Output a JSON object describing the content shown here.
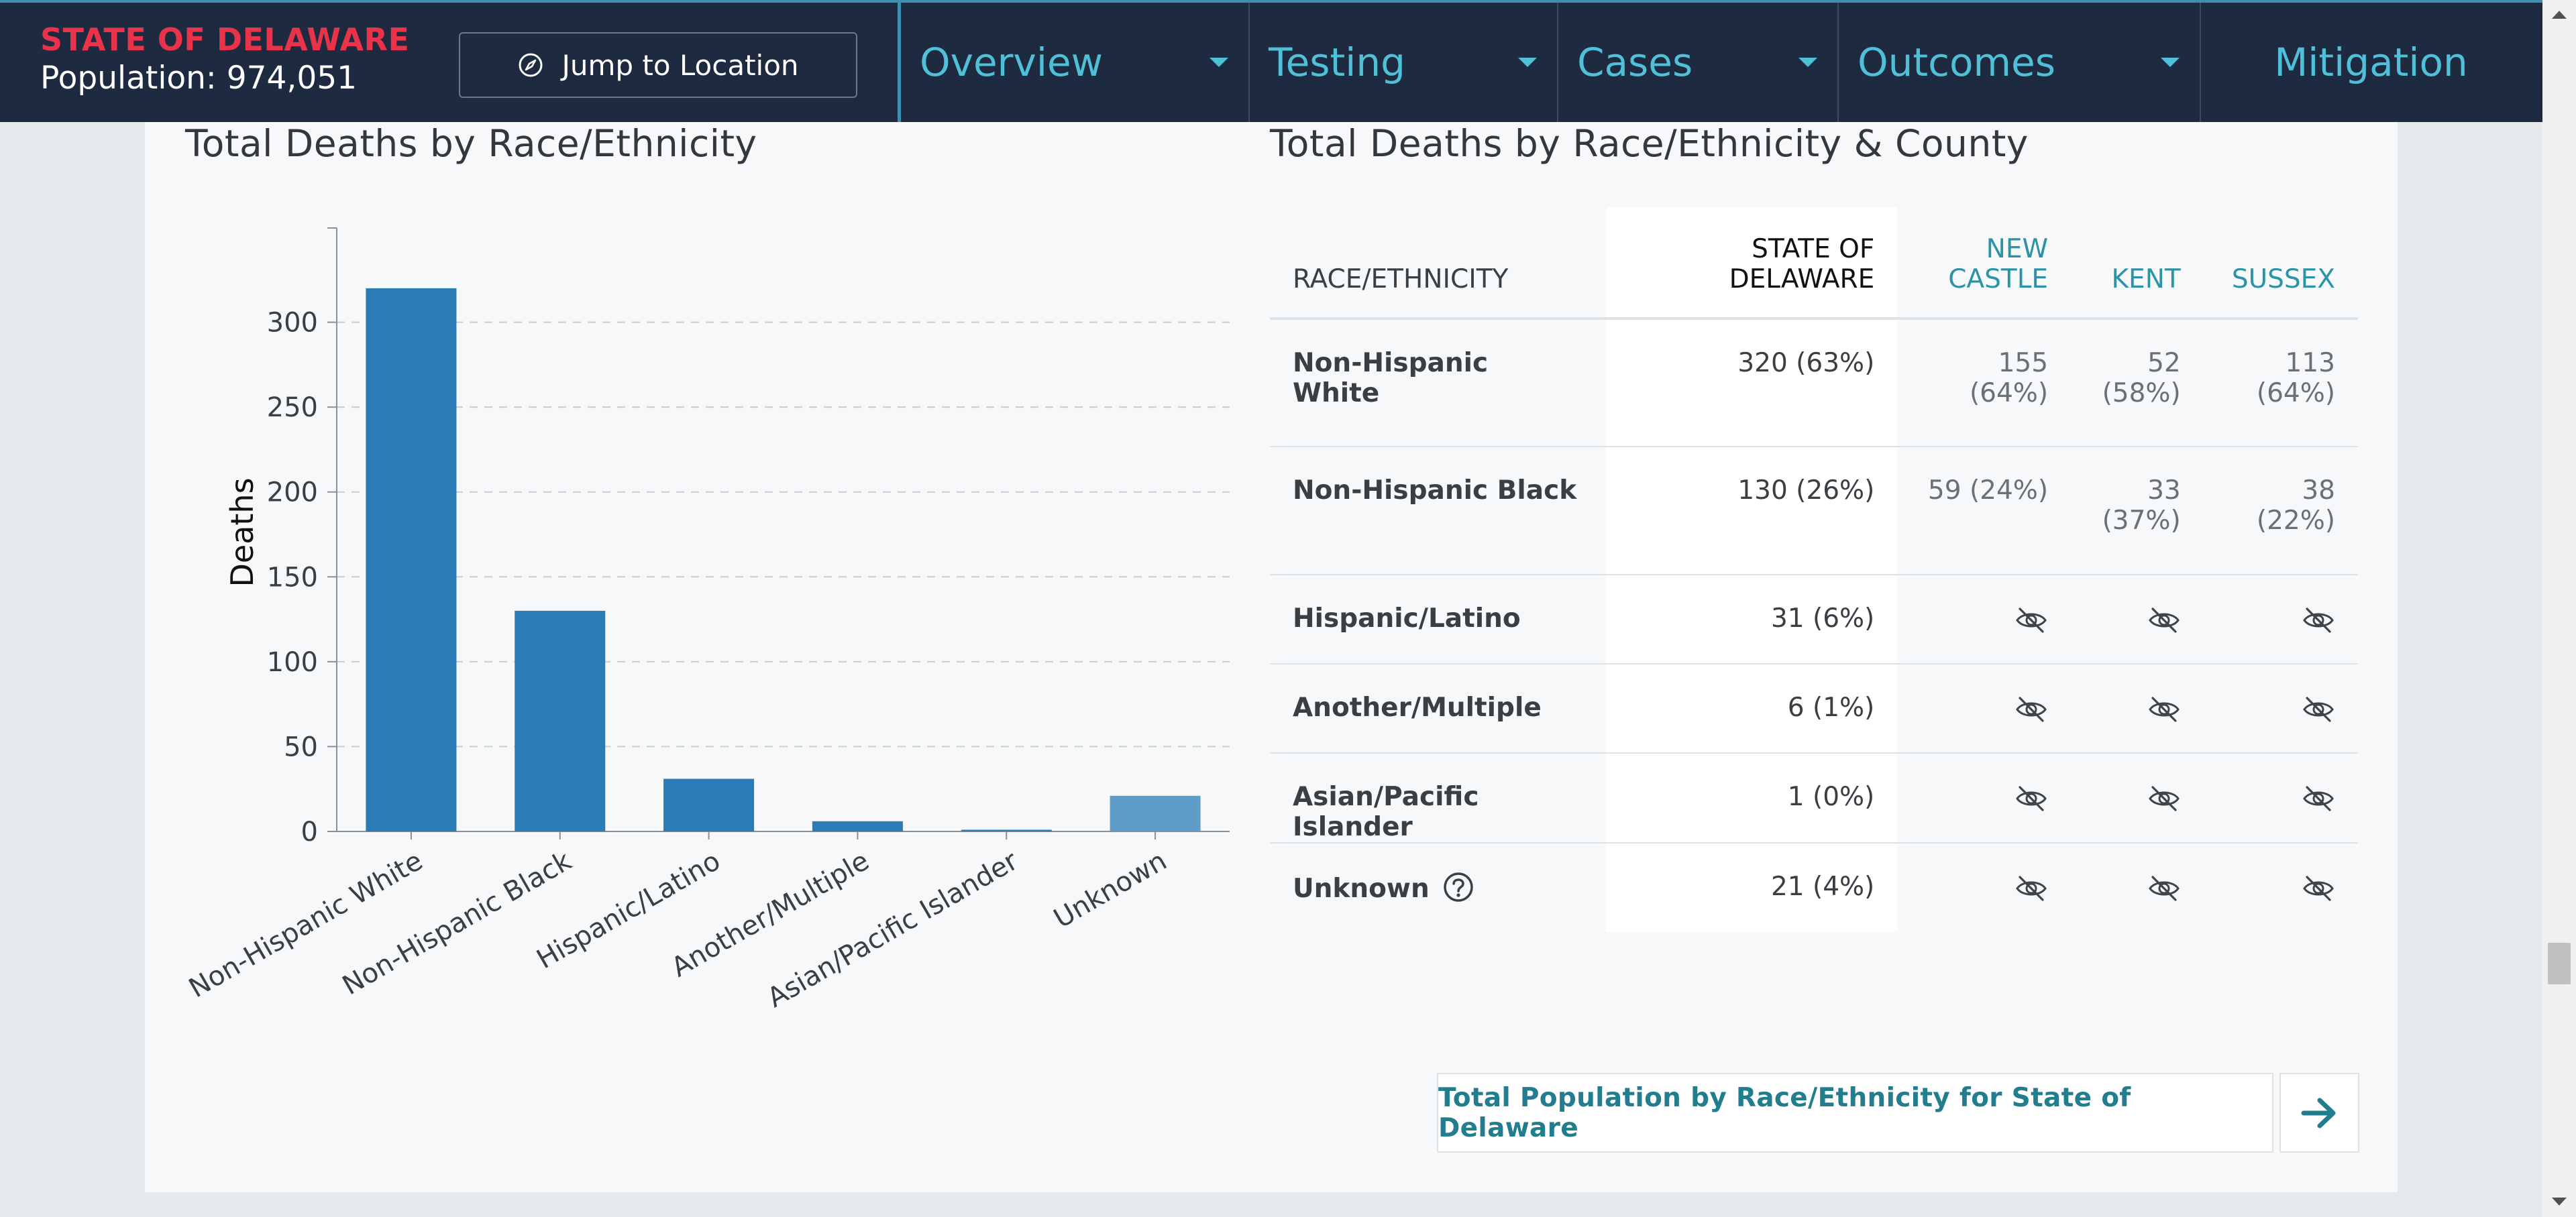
{
  "header": {
    "state_name": "STATE OF DELAWARE",
    "population": "Population: 974,051",
    "jump_label": "Jump to Location",
    "nav": [
      {
        "label": "Overview",
        "dropdown": true
      },
      {
        "label": "Testing",
        "dropdown": true
      },
      {
        "label": "Cases",
        "dropdown": true
      },
      {
        "label": "Outcomes",
        "dropdown": true
      },
      {
        "label": "Mitigation",
        "dropdown": false
      }
    ]
  },
  "chart_section": {
    "title": "Total Deaths by Race/Ethnicity"
  },
  "table_section": {
    "title": "Total Deaths by Race/Ethnicity & County"
  },
  "chart_data": {
    "type": "bar",
    "title": "Total Deaths by Race/Ethnicity",
    "xlabel": "",
    "ylabel": "Deaths",
    "categories": [
      "Non-Hispanic White",
      "Non-Hispanic Black",
      "Hispanic/Latino",
      "Another/Multiple",
      "Asian/Pacific Islander",
      "Unknown"
    ],
    "values": [
      320,
      130,
      31,
      6,
      1,
      21
    ],
    "ylim": [
      0,
      350
    ],
    "yticks": [
      0,
      50,
      100,
      150,
      200,
      250,
      300
    ],
    "grid": true,
    "colors": [
      "#2b7bb5",
      "#2b7bb5",
      "#2b7bb5",
      "#2b7bb5",
      "#2b7bb5",
      "#5d9dc8"
    ]
  },
  "table": {
    "headers": {
      "race": "RACE/ETHNICITY",
      "state": [
        "STATE OF",
        "DELAWARE"
      ],
      "new_castle": [
        "NEW",
        "CASTLE"
      ],
      "kent": "KENT",
      "sussex": "SUSSEX"
    },
    "rows": [
      {
        "race": "Non-Hispanic White",
        "state": "320 (63%)",
        "new_castle": "155 (64%)",
        "kent": [
          "52",
          "(58%)"
        ],
        "sussex": [
          "113",
          "(64%)"
        ],
        "hidden": false
      },
      {
        "race": "Non-Hispanic Black",
        "state": "130 (26%)",
        "new_castle": "59 (24%)",
        "kent": [
          "33",
          "(37%)"
        ],
        "sussex": [
          "38 (22%)"
        ],
        "hidden": false
      },
      {
        "race": "Hispanic/Latino",
        "state": "31 (6%)",
        "hidden": true
      },
      {
        "race": "Another/Multiple",
        "state": "6 (1%)",
        "hidden": true
      },
      {
        "race": "Asian/Pacific Islander",
        "state": "1 (0%)",
        "hidden": true
      },
      {
        "race": "Unknown",
        "state": "21 (4%)",
        "hidden": true,
        "help": true
      }
    ],
    "suppressed_icon": "eye-slash-icon"
  },
  "footer_link": {
    "label": "Total Population by Race/Ethnicity for State of Delaware",
    "arrow_icon": "arrow-right-icon"
  }
}
